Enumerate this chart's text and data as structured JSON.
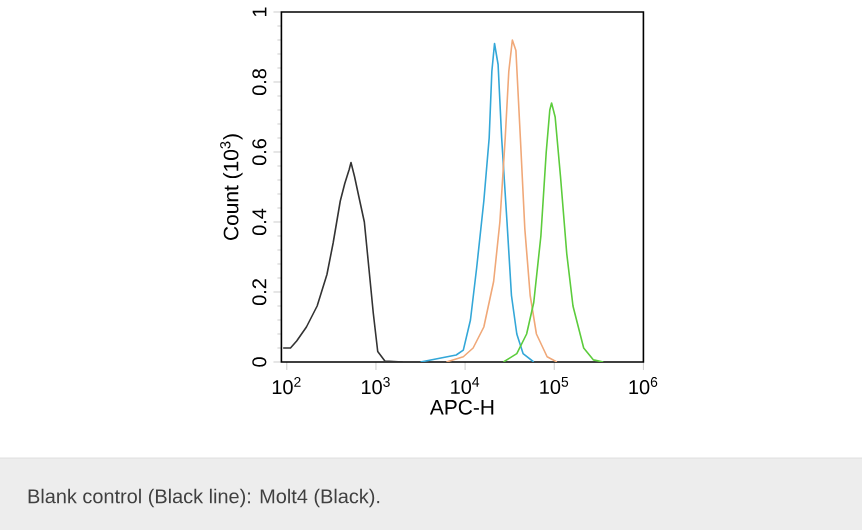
{
  "chart_data": {
    "type": "line",
    "xlabel": "APC-H",
    "ylabel": "Count (10$^{3}$)",
    "log": "x",
    "marker": "none",
    "xlim": [
      87,
      1000000
    ],
    "ylim": [
      0,
      1
    ],
    "xticks": [
      {
        "value": 100,
        "label": "10$^{2}$"
      },
      {
        "value": 1000,
        "label": "10$^{3}$"
      },
      {
        "value": 10000,
        "label": "10$^{4}$"
      },
      {
        "value": 100000,
        "label": "10$^{5}$"
      },
      {
        "value": 1000000,
        "label": "10$^{6}$"
      }
    ],
    "yticks": [
      0,
      0.2,
      0.4,
      0.6,
      0.8,
      1
    ],
    "series": [
      {
        "color": "#333333",
        "x": [
          91,
          110,
          129,
          166,
          219,
          282,
          331,
          398,
          447,
          501,
          525,
          575,
          646,
          741,
          832,
          933,
          1047,
          1259,
          1995
        ],
        "values": [
          0.04,
          0.04,
          0.06,
          0.1,
          0.16,
          0.25,
          0.34,
          0.46,
          0.51,
          0.55,
          0.57,
          0.53,
          0.47,
          0.4,
          0.27,
          0.14,
          0.03,
          0.003,
          0
        ]
      },
      {
        "color": "#33a7d8",
        "x": [
          3162,
          7943,
          9550,
          11482,
          13490,
          16218,
          18621,
          19953,
          21380,
          23442,
          25704,
          29512,
          33113,
          38019,
          44668,
          58884
        ],
        "values": [
          0,
          0.02,
          0.034,
          0.12,
          0.27,
          0.46,
          0.64,
          0.83,
          0.91,
          0.85,
          0.64,
          0.4,
          0.19,
          0.08,
          0.024,
          0
        ]
      },
      {
        "color": "#f0a878",
        "x": [
          6166,
          9550,
          12303,
          16218,
          20893,
          24547,
          28184,
          30903,
          33884,
          37154,
          41687,
          46774,
          53703,
          63096,
          83176,
          107152
        ],
        "values": [
          0,
          0.015,
          0.04,
          0.1,
          0.23,
          0.4,
          0.64,
          0.83,
          0.92,
          0.89,
          0.64,
          0.38,
          0.19,
          0.08,
          0.015,
          0
        ]
      },
      {
        "color": "#5ccc3c",
        "x": [
          26915,
          38019,
          48978,
          58884,
          70795,
          81283,
          89125,
          93325,
          102329,
          117490,
          138038,
          162181,
          213796,
          275423,
          354813
        ],
        "values": [
          0,
          0.024,
          0.08,
          0.17,
          0.36,
          0.6,
          0.72,
          0.74,
          0.7,
          0.53,
          0.31,
          0.16,
          0.04,
          0.006,
          0
        ]
      }
    ],
    "annotations": [
      "Blank control (Black line): Molt4 (Black)."
    ]
  }
}
